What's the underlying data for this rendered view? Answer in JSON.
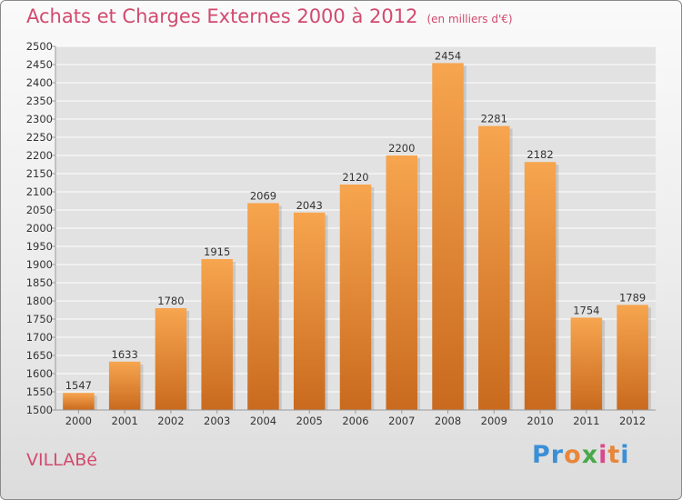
{
  "header": {
    "title": "Achats et Charges Externes 2000 à 2012",
    "subtitle": "(en milliers d'€)"
  },
  "footer": {
    "town": "VILLABé",
    "brand": "Proxiti",
    "brand_letters": [
      "P",
      "r",
      "o",
      "x",
      "i",
      "t",
      "i"
    ],
    "brand_colors": [
      "#3b8fd6",
      "#3b8fd6",
      "#e8863a",
      "#4aa84a",
      "#d94a8c",
      "#e8863a",
      "#3b8fd6"
    ]
  },
  "colors": {
    "bar_top": "#f7a54f",
    "bar_bottom": "#c96a1e",
    "grid": "#ffffff",
    "text": "#333333",
    "accent": "#d24a6e"
  },
  "chart_data": {
    "type": "bar",
    "title": "Achats et Charges Externes 2000 à 2012",
    "subtitle": "(en milliers d'€)",
    "xlabel": "",
    "ylabel": "",
    "categories": [
      "2000",
      "2001",
      "2002",
      "2003",
      "2004",
      "2005",
      "2006",
      "2007",
      "2008",
      "2009",
      "2010",
      "2011",
      "2012"
    ],
    "values": [
      1547,
      1633,
      1780,
      1915,
      2069,
      2043,
      2120,
      2200,
      2454,
      2281,
      2182,
      1754,
      1789
    ],
    "ylim": [
      1500,
      2500
    ],
    "ytick_step": 50,
    "grid": true,
    "data_labels": true
  }
}
